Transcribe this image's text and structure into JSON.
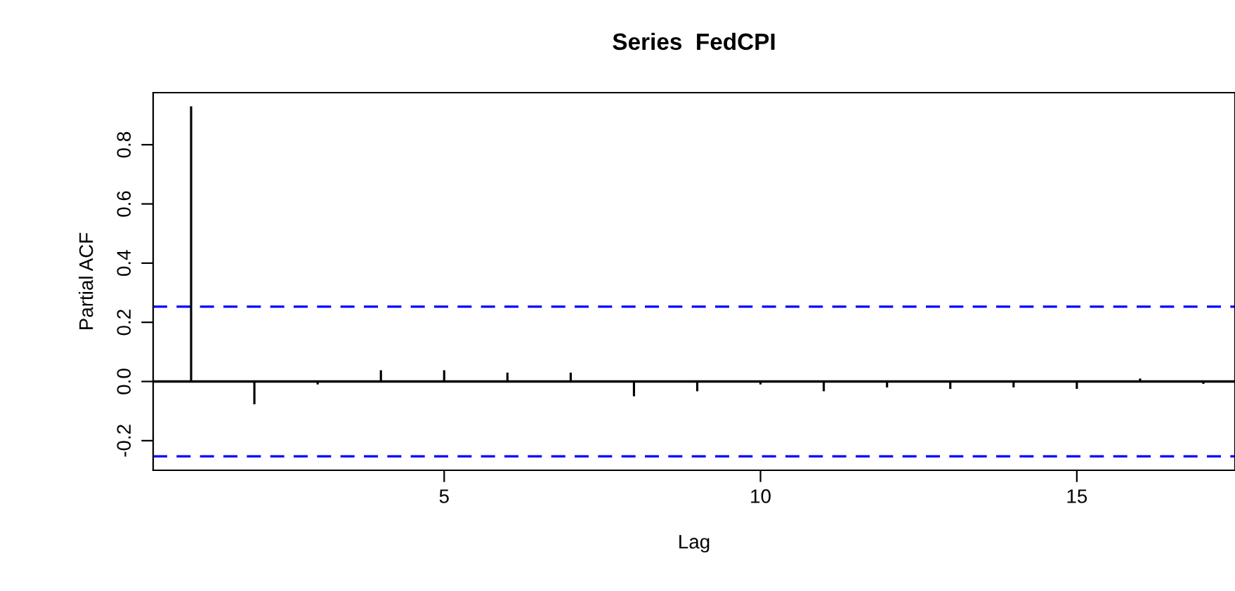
{
  "chart_data": {
    "type": "bar",
    "title": "Series  FedCPI",
    "xlabel": "Lag",
    "ylabel": "Partial ACF",
    "x": [
      1,
      2,
      3,
      4,
      5,
      6,
      7,
      8,
      9,
      10,
      11,
      12,
      13,
      14,
      15,
      16,
      17
    ],
    "values": [
      0.93,
      -0.077,
      -0.01,
      0.038,
      0.038,
      0.03,
      0.03,
      -0.05,
      -0.033,
      -0.01,
      -0.033,
      -0.02,
      -0.025,
      -0.02,
      -0.025,
      0.01,
      -0.008
    ],
    "color": "#000000",
    "xlim": [
      0.4,
      17.5
    ],
    "ylim": [
      -0.3,
      0.976
    ],
    "xticks": [
      5,
      10,
      15
    ],
    "yticks": [
      -0.2,
      {
        "value": 0,
        "label": "0.0"
      },
      0.2,
      0.4,
      0.6,
      0.8
    ],
    "ref_lines": [
      {
        "axis": "y",
        "value": 0.253,
        "color": "#0000ff",
        "line_style": "dashed"
      },
      {
        "axis": "y",
        "value": -0.253,
        "color": "#0000ff",
        "line_style": "dashed"
      },
      {
        "axis": "y",
        "value": 0,
        "color": "#000000",
        "line_style": "solid"
      }
    ],
    "grid": false,
    "legend": false
  }
}
